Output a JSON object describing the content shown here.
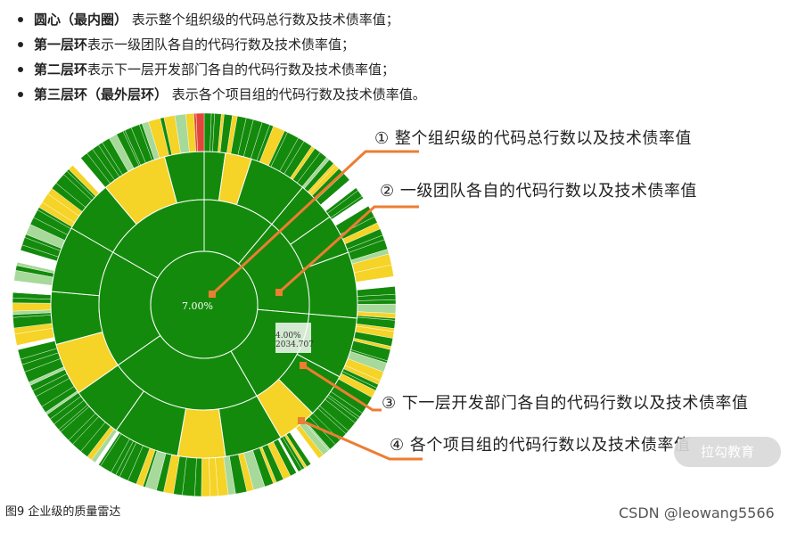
{
  "bullets": [
    {
      "bold": "圆心（最内圈）",
      "text": " 表示整个组织级的代码总行数及技术债率值；"
    },
    {
      "bold": "第一层环",
      "text": "表示一级团队各自的代码行数及技术债率值；"
    },
    {
      "bold": "第二层环",
      "text": "表示下一层开发部门各自的代码行数及技术债率值；"
    },
    {
      "bold": "第三层环（最外层环）",
      "text": " 表示各个项目组的代码行数及技术债率值。"
    }
  ],
  "callouts": [
    "① 整个组织级的代码总行数以及技术债率值",
    "② 一级团队各自的代码行数以及技术债率值",
    "③ 下一层开发部门各自的代码行数以及技术债率值",
    "④ 各个项目组的代码行数以及技术债率值"
  ],
  "center_value": "7.00%",
  "tooltip": {
    "line1": "4.00%",
    "line2": "2034.707"
  },
  "caption": "图9 企业级的质量雷达",
  "watermark": "拉勾教育",
  "site_mark": "CSDN @leowang5566",
  "colors": {
    "green": "#138a0c",
    "yellow": "#f5d327",
    "lightgreen": "#a7d99a",
    "red": "#e0473a",
    "orange": "#ed7d31"
  }
}
